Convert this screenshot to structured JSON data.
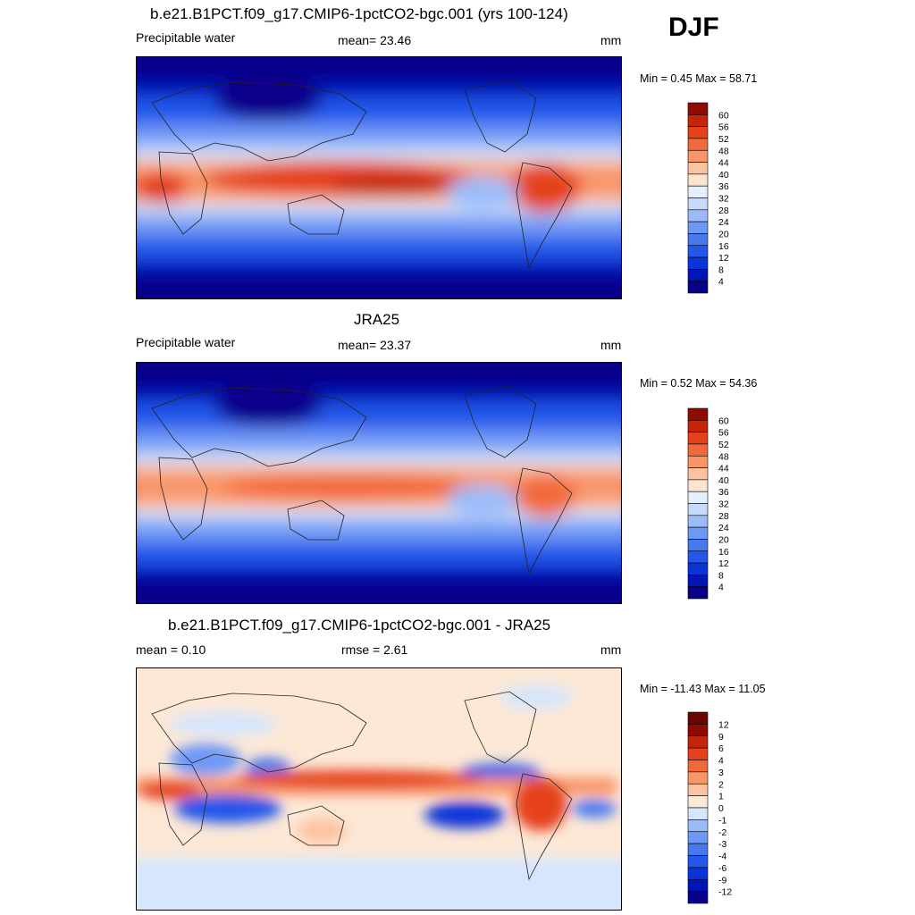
{
  "season": "DJF",
  "panels": [
    {
      "title": "b.e21.B1PCT.f09_g17.CMIP6-1pctCO2-bgc.001 (yrs 100-124)",
      "left_label": "Precipitable water",
      "center_label": "mean=  23.46",
      "units": "mm",
      "minmax": "Min =   0.45 Max =  58.71"
    },
    {
      "title": "JRA25",
      "left_label": "Precipitable water",
      "center_label": "mean=  23.37",
      "units": "mm",
      "minmax": "Min =   0.52 Max =  54.36"
    },
    {
      "title": "b.e21.B1PCT.f09_g17.CMIP6-1pctCO2-bgc.001 - JRA25",
      "left_label": "mean =   0.10",
      "center_label": "rmse =   2.61",
      "units": "mm",
      "minmax": "Min = -11.43 Max =  11.05"
    }
  ],
  "chart_data": [
    {
      "type": "heatmap",
      "title": "b.e21.B1PCT.f09_g17.CMIP6-1pctCO2-bgc.001 (yrs 100-124)",
      "variable": "Precipitable water",
      "units": "mm",
      "mean": 23.46,
      "min": 0.45,
      "max": 58.71,
      "colorbar_levels": [
        4,
        8,
        12,
        16,
        20,
        24,
        28,
        32,
        36,
        40,
        44,
        48,
        52,
        56,
        60
      ],
      "colorbar_colors": [
        "#08008a",
        "#0015b5",
        "#0a34d8",
        "#2257ea",
        "#4778f0",
        "#6e98f5",
        "#9bbcf9",
        "#c8dafb",
        "#e6effe",
        "#fde4cf",
        "#fcc3a0",
        "#f99569",
        "#f26a3b",
        "#e5421b",
        "#c42508",
        "#8f0a00"
      ]
    },
    {
      "type": "heatmap",
      "title": "JRA25",
      "variable": "Precipitable water",
      "units": "mm",
      "mean": 23.37,
      "min": 0.52,
      "max": 54.36,
      "colorbar_levels": [
        4,
        8,
        12,
        16,
        20,
        24,
        28,
        32,
        36,
        40,
        44,
        48,
        52,
        56,
        60
      ],
      "colorbar_colors": [
        "#08008a",
        "#0015b5",
        "#0a34d8",
        "#2257ea",
        "#4778f0",
        "#6e98f5",
        "#9bbcf9",
        "#c8dafb",
        "#e6effe",
        "#fde4cf",
        "#fcc3a0",
        "#f99569",
        "#f26a3b",
        "#e5421b",
        "#c42508",
        "#8f0a00"
      ]
    },
    {
      "type": "heatmap",
      "title": "b.e21.B1PCT.f09_g17.CMIP6-1pctCO2-bgc.001 - JRA25",
      "units": "mm",
      "mean": 0.1,
      "rmse": 2.61,
      "min": -11.43,
      "max": 11.05,
      "colorbar_levels": [
        -12,
        -9,
        -6,
        -4,
        -3,
        -2,
        -1,
        0,
        1,
        2,
        3,
        4,
        6,
        9,
        12
      ],
      "colorbar_colors": [
        "#08008a",
        "#0015b5",
        "#0a34d8",
        "#2257ea",
        "#4778f0",
        "#6e98f5",
        "#9bbcf9",
        "#d6e6fc",
        "#fde8d6",
        "#fcc3a0",
        "#f99569",
        "#f26a3b",
        "#e5421b",
        "#c42508",
        "#8f0a00",
        "#6a0500"
      ]
    }
  ]
}
